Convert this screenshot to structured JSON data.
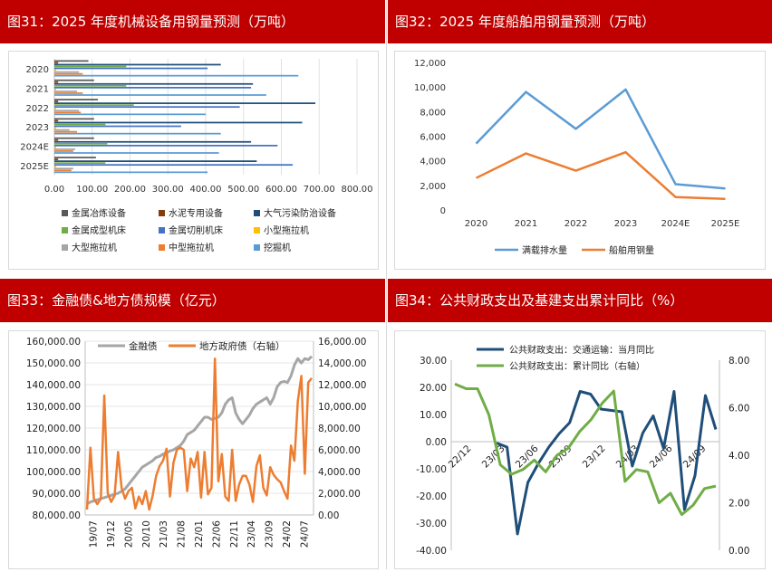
{
  "panels": {
    "p31": {
      "title": "图31：2025 年度机械设备用钢量预测（万吨）"
    },
    "p32": {
      "title": "图32：2025 年度船舶用钢量预测（万吨）"
    },
    "p33": {
      "title": "图33：金融债&地方债规模（亿元）"
    },
    "p34": {
      "title": "图34：公共财政支出及基建支出累计同比（%）"
    }
  },
  "chart_data": [
    {
      "id": "chart31",
      "type": "bar",
      "orientation": "horizontal",
      "categories": [
        "2020",
        "2021",
        "2022",
        "2023",
        "2024E",
        "2025E"
      ],
      "x_ticks": [
        "0.00",
        "100.00",
        "200.00",
        "300.00",
        "400.00",
        "500.00",
        "600.00",
        "700.00",
        "800.00"
      ],
      "xlim": [
        0,
        800
      ],
      "series": [
        {
          "name": "金属冶炼设备",
          "color": "#595959",
          "values": [
            90,
            105,
            115,
            105,
            105,
            110
          ]
        },
        {
          "name": "水泥专用设备",
          "color": "#843c0c",
          "values": [
            10,
            10,
            10,
            10,
            10,
            10
          ]
        },
        {
          "name": "大气污染防治设备",
          "color": "#1f4e79",
          "values": [
            440,
            525,
            690,
            655,
            520,
            535
          ]
        },
        {
          "name": "金属成型机床",
          "color": "#70ad47",
          "values": [
            190,
            190,
            210,
            135,
            140,
            135
          ]
        },
        {
          "name": "金属切削机床",
          "color": "#4472c4",
          "values": [
            405,
            520,
            490,
            335,
            590,
            630
          ]
        },
        {
          "name": "小型拖拉机",
          "color": "#ffc000",
          "values": [
            5,
            5,
            5,
            5,
            5,
            5
          ]
        },
        {
          "name": "大型拖拉机",
          "color": "#a5a5a5",
          "values": [
            65,
            60,
            65,
            40,
            55,
            50
          ]
        },
        {
          "name": "中型拖拉机",
          "color": "#ed7d31",
          "values": [
            75,
            75,
            70,
            60,
            50,
            45
          ]
        },
        {
          "name": "挖掘机",
          "color": "#5b9bd5",
          "values": [
            645,
            560,
            400,
            440,
            435,
            405
          ]
        }
      ]
    },
    {
      "id": "chart32",
      "type": "line",
      "categories": [
        "2020",
        "2021",
        "2022",
        "2023",
        "2024E",
        "2025E"
      ],
      "y_ticks": [
        "12,000",
        "10,000",
        "8,000",
        "6,000",
        "4,000",
        "2,000",
        "0"
      ],
      "ylim": [
        0,
        12000
      ],
      "series": [
        {
          "name": "满载排水量",
          "color": "#5b9bd5",
          "values": [
            5400,
            9600,
            6600,
            9800,
            2100,
            1750
          ]
        },
        {
          "name": "船舶用钢量",
          "color": "#ed7d31",
          "values": [
            2600,
            4600,
            3200,
            4700,
            1050,
            900
          ]
        }
      ]
    },
    {
      "id": "chart33",
      "type": "line",
      "x_ticks": [
        "19/07",
        "19/12",
        "20/05",
        "20/10",
        "21/03",
        "21/08",
        "22/01",
        "22/06",
        "22/11",
        "23/04",
        "23/09",
        "24/02",
        "24/07"
      ],
      "y_left_ticks": [
        "160,000.00",
        "150,000.00",
        "140,000.00",
        "130,000.00",
        "120,000.00",
        "110,000.00",
        "100,000.00",
        "90,000.00",
        "80,000.00"
      ],
      "y_right_ticks": [
        "16,000.00",
        "14,000.00",
        "12,000.00",
        "10,000.00",
        "8,000.00",
        "6,000.00",
        "4,000.00",
        "2,000.00",
        "0.00"
      ],
      "ylim_left": [
        80000,
        160000
      ],
      "ylim_right": [
        0,
        16000
      ],
      "series": [
        {
          "name": "金融债",
          "axis": "left",
          "color": "#a6a6a6",
          "values": [
            85000,
            86000,
            86500,
            87000,
            87500,
            88000,
            88500,
            89000,
            89500,
            90000,
            91000,
            92000,
            94000,
            96000,
            98000,
            100000,
            102000,
            103000,
            104000,
            105000,
            106500,
            107000,
            108000,
            108500,
            109500,
            110000,
            111000,
            112000,
            114000,
            117000,
            118000,
            119000,
            121000,
            123000,
            125000,
            125000,
            124000,
            124500,
            125000,
            127000,
            131000,
            133000,
            134000,
            127000,
            124000,
            122000,
            124000,
            126000,
            129000,
            131000,
            132000,
            133000,
            134000,
            131000,
            134000,
            139000,
            141000,
            141500,
            141000,
            144000,
            149000,
            152000,
            150000,
            152000,
            151500,
            153000
          ]
        },
        {
          "name": "地方政府债（右轴）",
          "axis": "right",
          "color": "#ed7d31",
          "values": [
            500,
            6200,
            1500,
            1000,
            1500,
            11000,
            2000,
            1200,
            1800,
            5800,
            2500,
            1500,
            2200,
            2500,
            600,
            1700,
            1000,
            2200,
            500,
            1800,
            3600,
            4500,
            5000,
            6100,
            1700,
            4800,
            6000,
            6200,
            6000,
            2200,
            5200,
            4400,
            5800,
            1600,
            5800,
            1900,
            2500,
            14400,
            3100,
            5600,
            1700,
            1300,
            6000,
            1300,
            2800,
            3600,
            3600,
            2800,
            1200,
            4500,
            5500,
            2500,
            1800,
            4400,
            3700,
            3300,
            3000,
            2200,
            1500,
            6400,
            5000,
            10500,
            12800,
            3800,
            12200,
            12600
          ]
        }
      ]
    },
    {
      "id": "chart34",
      "type": "line",
      "x_ticks": [
        "22/12",
        "23/03",
        "23/06",
        "23/09",
        "23/12",
        "24/03",
        "24/06",
        "24/09"
      ],
      "y_left_ticks": [
        "30.00",
        "20.00",
        "10.00",
        "0.00",
        "-10.00",
        "-20.00",
        "-30.00",
        "-40.00"
      ],
      "y_right_ticks": [
        "8.00",
        "6.00",
        "4.00",
        "2.00",
        "0.00"
      ],
      "ylim_left": [
        -40,
        30
      ],
      "ylim_right": [
        0,
        8
      ],
      "series": [
        {
          "name": "公共财政支出：交通运输：当月同比",
          "axis": "left",
          "color": "#1f4e79",
          "values": [
            null,
            null,
            null,
            null,
            -0.5,
            -2,
            -34,
            -15,
            -8,
            -2,
            3,
            7,
            18.5,
            17.5,
            12,
            11.5,
            11,
            -9,
            3.2,
            9.5,
            -2.5,
            18.5,
            -25,
            -12.5,
            17,
            4.5
          ]
        },
        {
          "name": "公共财政支出：累计同比（右轴）",
          "axis": "right",
          "color": "#70ad47",
          "values": [
            7.0,
            6.8,
            6.8,
            5.7,
            3.6,
            3.2,
            3.4,
            3.8,
            3.3,
            4.0,
            4.3,
            5.0,
            5.5,
            6.2,
            6.7,
            2.9,
            3.4,
            3.3,
            2.0,
            2.4,
            1.5,
            1.9,
            2.6,
            2.7
          ]
        }
      ]
    }
  ]
}
